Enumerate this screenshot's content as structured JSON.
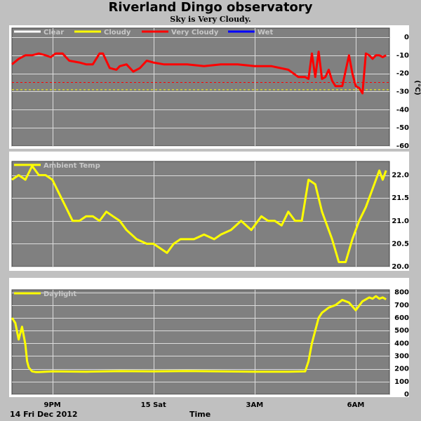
{
  "title": "Riverland Dingo observatory",
  "subtitle": "Sky is Very Cloudy.",
  "date_label": "14 Fri Dec 2012",
  "time_label": "Time",
  "colors": {
    "background": "#c0c0c0",
    "plot_bg": "#808080",
    "clear": "#ffffff",
    "cloudy": "#ffff00",
    "very_cloudy": "#ff0000",
    "wet": "#0000ff",
    "ambient": "#ffff00",
    "daylight": "#ffff00"
  },
  "chart_data": [
    {
      "type": "line",
      "name": "sky-temperature",
      "ylabel": "(°C)",
      "ylim": [
        -60,
        5
      ],
      "yticks": [
        0,
        -10,
        -20,
        -30,
        -40,
        -50,
        -60
      ],
      "xlim": [
        19.8,
        31.0
      ],
      "xticks": [
        21,
        24,
        27,
        30
      ],
      "xtick_labels": [
        "9PM",
        "15 Sat",
        "3AM",
        "6AM"
      ],
      "grid": true,
      "legend": [
        "Clear",
        "Cloudy",
        "Very Cloudy",
        "Wet"
      ],
      "threshold_lines": [
        {
          "value": -25,
          "color": "#ff0000",
          "style": "dashed"
        },
        {
          "value": -29,
          "color": "#ffff00",
          "style": "dashed"
        }
      ],
      "series": [
        {
          "name": "Very Cloudy",
          "color": "#ff0000",
          "x": [
            19.8,
            20.0,
            20.2,
            20.4,
            20.6,
            20.8,
            20.95,
            21.1,
            21.3,
            21.5,
            21.8,
            22.0,
            22.2,
            22.4,
            22.5,
            22.7,
            22.9,
            23.0,
            23.2,
            23.4,
            23.6,
            23.8,
            24.0,
            24.3,
            24.6,
            25.0,
            25.5,
            26.0,
            26.5,
            27.0,
            27.5,
            28.0,
            28.3,
            28.5,
            28.6,
            28.7,
            28.8,
            28.9,
            29.0,
            29.1,
            29.2,
            29.3,
            29.4,
            29.5,
            29.6,
            29.8,
            29.9,
            30.0,
            30.1,
            30.2,
            30.3,
            30.4,
            30.5,
            30.6,
            30.7,
            30.8,
            30.9
          ],
          "values": [
            -15,
            -12,
            -10,
            -10,
            -9,
            -10,
            -11,
            -9,
            -9,
            -13,
            -14,
            -15,
            -15,
            -9,
            -9,
            -17,
            -18,
            -16,
            -15,
            -19,
            -17,
            -13,
            -14,
            -15,
            -15,
            -15,
            -16,
            -15,
            -15,
            -16,
            -16,
            -18,
            -22,
            -22,
            -23,
            -9,
            -22,
            -8,
            -23,
            -22,
            -18,
            -24,
            -27,
            -27,
            -27,
            -10,
            -20,
            -27,
            -28,
            -31,
            -9,
            -10,
            -12,
            -10,
            -10,
            -11,
            -10
          ]
        }
      ]
    },
    {
      "type": "line",
      "name": "ambient-temperature",
      "ylim": [
        20.0,
        22.3
      ],
      "yticks": [
        20.0,
        20.5,
        21.0,
        21.5,
        22.0
      ],
      "xlim": [
        19.8,
        31.0
      ],
      "xticks": [
        21,
        24,
        27,
        30
      ],
      "grid": true,
      "legend": [
        "Ambient Temp"
      ],
      "series": [
        {
          "name": "Ambient Temp",
          "color": "#ffff00",
          "x": [
            19.8,
            20.0,
            20.2,
            20.4,
            20.6,
            20.8,
            21.0,
            21.2,
            21.4,
            21.6,
            21.8,
            22.0,
            22.2,
            22.4,
            22.6,
            22.8,
            23.0,
            23.2,
            23.5,
            23.8,
            24.0,
            24.2,
            24.4,
            24.6,
            24.8,
            25.0,
            25.2,
            25.5,
            25.8,
            26.0,
            26.3,
            26.6,
            26.9,
            27.2,
            27.4,
            27.6,
            27.8,
            28.0,
            28.2,
            28.4,
            28.6,
            28.8,
            28.9,
            29.0,
            29.1,
            29.3,
            29.5,
            29.7,
            29.9,
            30.1,
            30.3,
            30.5,
            30.6,
            30.7,
            30.8,
            30.9
          ],
          "values": [
            21.9,
            22.0,
            21.9,
            22.2,
            22.0,
            22.0,
            21.9,
            21.6,
            21.3,
            21.0,
            21.0,
            21.1,
            21.1,
            21.0,
            21.2,
            21.1,
            21.0,
            20.8,
            20.6,
            20.5,
            20.5,
            20.4,
            20.3,
            20.5,
            20.6,
            20.6,
            20.6,
            20.7,
            20.6,
            20.7,
            20.8,
            21.0,
            20.8,
            21.1,
            21.0,
            21.0,
            20.9,
            21.2,
            21.0,
            21.0,
            21.9,
            21.8,
            21.5,
            21.2,
            21.0,
            20.6,
            20.1,
            20.1,
            20.6,
            21.0,
            21.3,
            21.7,
            21.9,
            22.1,
            21.9,
            22.1
          ]
        }
      ]
    },
    {
      "type": "line",
      "name": "daylight",
      "ylim": [
        0,
        820
      ],
      "yticks": [
        0,
        100,
        200,
        300,
        400,
        500,
        600,
        700,
        800
      ],
      "xlim": [
        19.8,
        31.0
      ],
      "xticks": [
        21,
        24,
        27,
        30
      ],
      "grid": true,
      "legend": [
        "Daylight"
      ],
      "series": [
        {
          "name": "Daylight",
          "color": "#ffff00",
          "x": [
            19.8,
            19.9,
            20.0,
            20.1,
            20.2,
            20.25,
            20.3,
            20.4,
            20.5,
            20.6,
            20.8,
            21.0,
            22.0,
            23.0,
            24.0,
            25.0,
            26.0,
            27.0,
            28.0,
            28.5,
            28.6,
            28.7,
            28.8,
            28.9,
            29.0,
            29.2,
            29.4,
            29.6,
            29.8,
            30.0,
            30.2,
            30.4,
            30.5,
            30.6,
            30.7,
            30.8,
            30.9
          ],
          "values": [
            600,
            560,
            430,
            530,
            390,
            260,
            210,
            180,
            175,
            175,
            178,
            180,
            178,
            182,
            180,
            183,
            180,
            178,
            178,
            180,
            260,
            400,
            500,
            600,
            640,
            680,
            700,
            740,
            720,
            660,
            730,
            760,
            750,
            770,
            750,
            760,
            745
          ]
        }
      ]
    }
  ]
}
